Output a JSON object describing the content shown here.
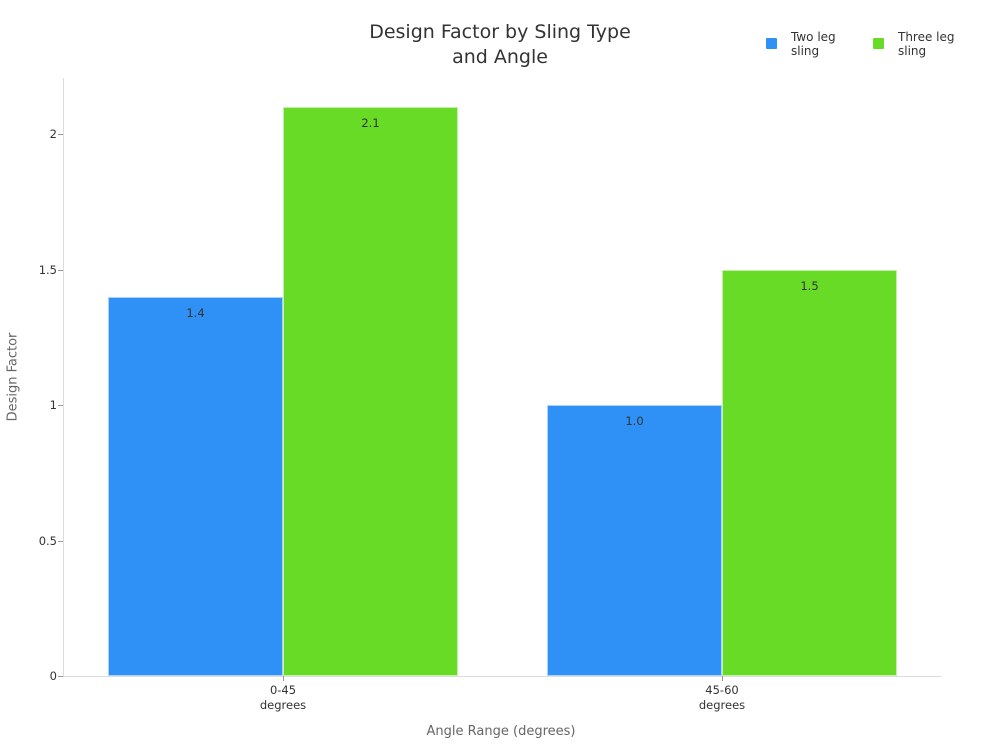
{
  "chart_data": {
    "type": "bar",
    "title": "Design Factor by Sling Type and Angle",
    "title_lines": [
      "Design Factor by Sling Type",
      "and Angle"
    ],
    "xlabel": "Angle Range (degrees)",
    "ylabel": "Design Factor",
    "categories": [
      "0-45 degrees",
      "45-60 degrees"
    ],
    "category_lines": [
      "0-45\ndegrees",
      "45-60\ndegrees"
    ],
    "series": [
      {
        "name": "Two leg sling",
        "color": "#2f91f5",
        "values": [
          1.4,
          1.0
        ],
        "labels": [
          "1.4",
          "1.0"
        ]
      },
      {
        "name": "Three leg sling",
        "color": "#67db26",
        "values": [
          2.1,
          1.5
        ],
        "labels": [
          "2.1",
          "1.5"
        ]
      }
    ],
    "ylim": [
      0,
      2.2
    ],
    "yticks": [
      0,
      0.5,
      1,
      1.5,
      2
    ],
    "ytick_labels": [
      "0",
      "0.5",
      "1",
      "1.5",
      "2"
    ],
    "grid": false,
    "legend_position": "top-right",
    "legend": [
      {
        "label": "Two leg sling",
        "label_lines": "Two leg\nsling",
        "color": "#2f91f5"
      },
      {
        "label": "Three leg sling",
        "label_lines": "Three leg\nsling",
        "color": "#67db26"
      }
    ]
  }
}
